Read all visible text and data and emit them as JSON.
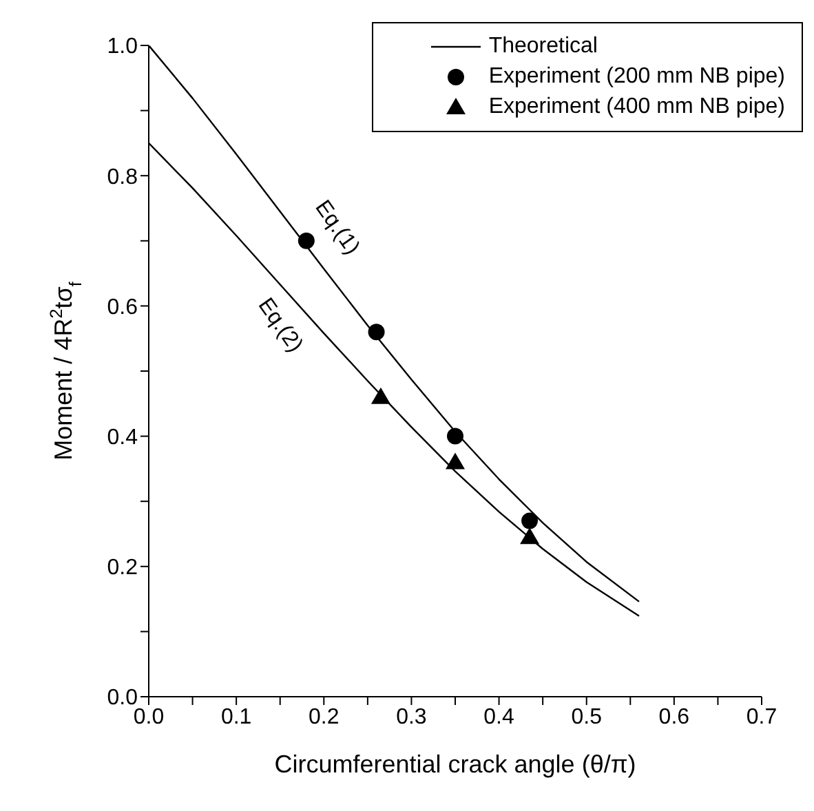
{
  "chart_data": {
    "type": "line",
    "xlabel": "Circumferential crack angle (θ/π)",
    "ylabel": "Moment / 4R$^{2}$tσ$_{f}$",
    "xlim": [
      0,
      0.7
    ],
    "ylim": [
      0,
      1.0
    ],
    "xticks": [
      {
        "value": 0,
        "label": "0.0"
      },
      {
        "value": 0.05,
        "label": null
      },
      0.1,
      {
        "value": 0.15,
        "label": null
      },
      0.2,
      {
        "value": 0.25,
        "label": null
      },
      0.3,
      {
        "value": 0.35,
        "label": null
      },
      0.4,
      {
        "value": 0.45,
        "label": null
      },
      0.5,
      {
        "value": 0.55,
        "label": null
      },
      0.6,
      {
        "value": 0.65,
        "label": null
      },
      0.7
    ],
    "yticks": [
      {
        "value": 0,
        "label": "0.0"
      },
      {
        "value": 0.1,
        "label": null
      },
      0.2,
      {
        "value": 0.3,
        "label": null
      },
      0.4,
      {
        "value": 0.5,
        "label": null
      },
      0.6,
      {
        "value": 0.7,
        "label": null
      },
      0.8,
      {
        "value": 0.9,
        "label": null
      },
      {
        "value": 1.0,
        "label": "1.0"
      }
    ],
    "legend": "top right",
    "grid": false,
    "series": [
      {
        "name": "Theoretical",
        "color": "#000000",
        "marker": "none",
        "x": [
          0,
          0.05,
          0.1,
          0.15,
          0.2,
          0.25,
          0.3,
          0.35,
          0.4,
          0.45,
          0.5,
          0.56
        ],
        "values": [
          1.0,
          0.919,
          0.833,
          0.745,
          0.657,
          0.57,
          0.487,
          0.407,
          0.334,
          0.267,
          0.207,
          0.146
        ]
      },
      {
        "color": "#000000",
        "marker": "none",
        "x": [
          0,
          0.05,
          0.1,
          0.15,
          0.2,
          0.25,
          0.3,
          0.35,
          0.4,
          0.45,
          0.5,
          0.56
        ],
        "values": [
          0.85,
          0.781,
          0.708,
          0.633,
          0.558,
          0.485,
          0.414,
          0.346,
          0.284,
          0.227,
          0.176,
          0.124
        ]
      },
      {
        "name": "Experiment (200 mm NB pipe)",
        "type": "scatter",
        "color": "#000000",
        "marker": "circle",
        "x": [
          0.18,
          0.26,
          0.35,
          0.435
        ],
        "values": [
          0.7,
          0.56,
          0.4,
          0.27
        ]
      },
      {
        "name": "Experiment (400 mm NB pipe)",
        "type": "scatter",
        "color": "#000000",
        "marker": "triangle",
        "x": [
          0.265,
          0.35,
          0.435
        ],
        "values": [
          0.46,
          0.36,
          0.245
        ]
      }
    ],
    "annotations": [
      "Eq.(1)",
      "Eq.(2)"
    ]
  }
}
